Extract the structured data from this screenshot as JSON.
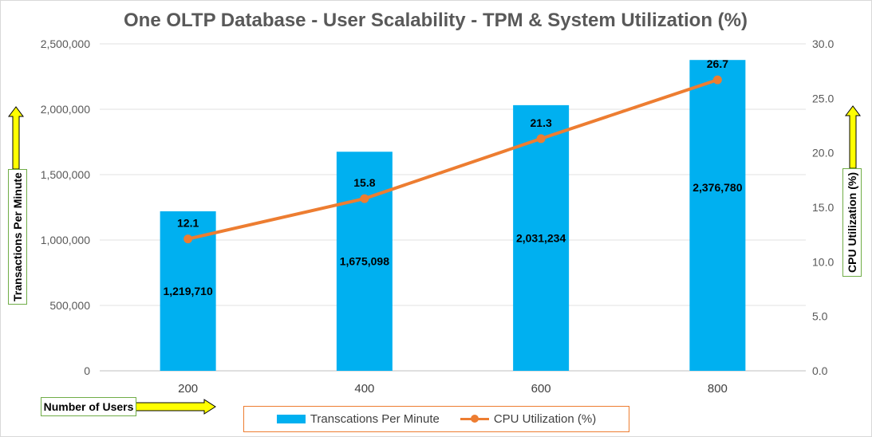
{
  "chart_data": {
    "type": "bar+line",
    "title": "One OLTP Database - User Scalability - TPM & System Utilization (%)",
    "categories": [
      "200",
      "400",
      "600",
      "800"
    ],
    "series": [
      {
        "name": "Transcations Per Minute",
        "type": "bar",
        "axis": "left",
        "values": [
          1219710,
          1675098,
          2031234,
          2376780
        ],
        "labels": [
          "1,219,710",
          "1,675,098",
          "2,031,234",
          "2,376,780"
        ],
        "color": "#00b0f0"
      },
      {
        "name": "CPU Utilization (%)",
        "type": "line",
        "axis": "right",
        "values": [
          12.1,
          15.8,
          21.3,
          26.7
        ],
        "labels": [
          "12.1",
          "15.8",
          "21.3",
          "26.7"
        ],
        "color": "#ed7d31"
      }
    ],
    "xlabel": "Number of Users",
    "ylabel": "Transactions Per Minute",
    "y2label": "CPU Utilization (%)",
    "ylim": [
      0,
      2500000
    ],
    "y2lim": [
      0,
      30
    ],
    "yticks": [
      "0",
      "500,000",
      "1,000,000",
      "1,500,000",
      "2,000,000",
      "2,500,000"
    ],
    "y2ticks": [
      "0.0",
      "5.0",
      "10.0",
      "15.0",
      "20.0",
      "25.0",
      "30.0"
    ],
    "grid": true,
    "legend_position": "bottom"
  },
  "colors": {
    "bar": "#00b0f0",
    "line": "#ed7d31",
    "arrow_fill": "#ffff00",
    "title_border": "#70ad47",
    "legend_border": "#ed7d31"
  }
}
